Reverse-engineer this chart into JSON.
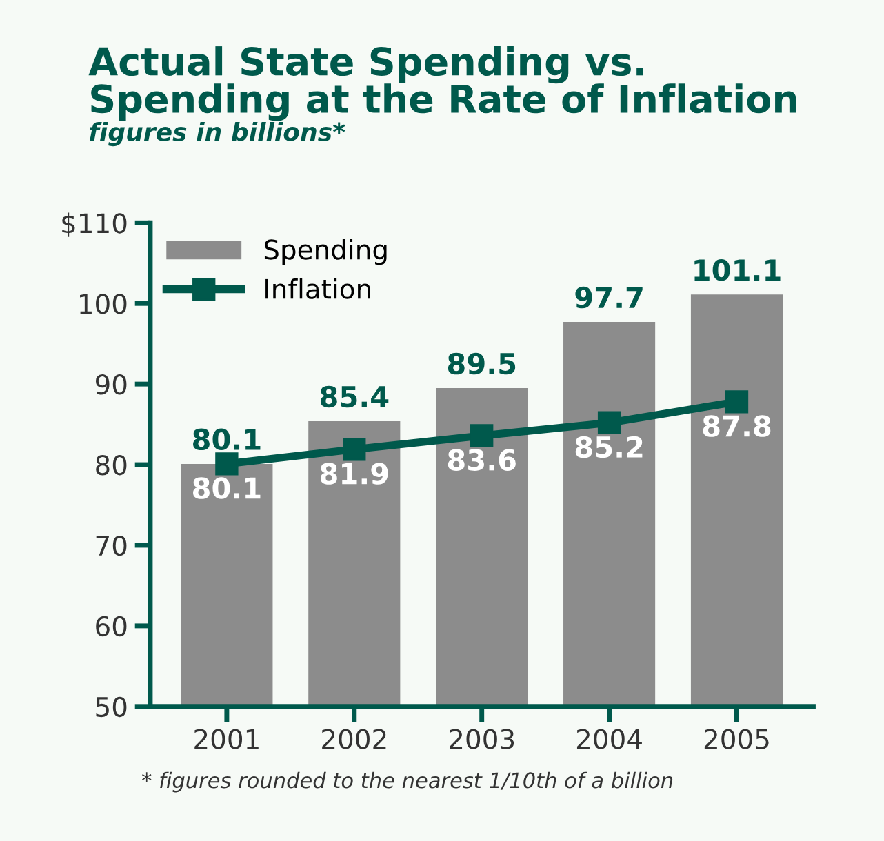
{
  "chart_data": {
    "type": "bar",
    "title": "Actual State Spending vs.\nSpending at the Rate of Inflation",
    "subtitle": "figures in billions*",
    "categories": [
      "2001",
      "2002",
      "2003",
      "2004",
      "2005"
    ],
    "series": [
      {
        "name": "Spending",
        "color": "#8c8c8c",
        "values": [
          80.1,
          85.4,
          89.5,
          97.7,
          101.1
        ]
      },
      {
        "name": "Inflation",
        "type": "line",
        "color": "#00594c",
        "values": [
          80.1,
          81.9,
          83.6,
          85.2,
          87.8
        ]
      }
    ],
    "ylim": [
      50,
      110
    ],
    "yticks": [
      50,
      60,
      70,
      80,
      90,
      100,
      {
        "value": 110,
        "label": "$110"
      }
    ],
    "data_labels": true,
    "marker": "square",
    "line_style": "solid",
    "legend": "top left",
    "grid": false,
    "annotations": [
      "* figures rounded to the nearest 1/10th of a billion"
    ]
  }
}
